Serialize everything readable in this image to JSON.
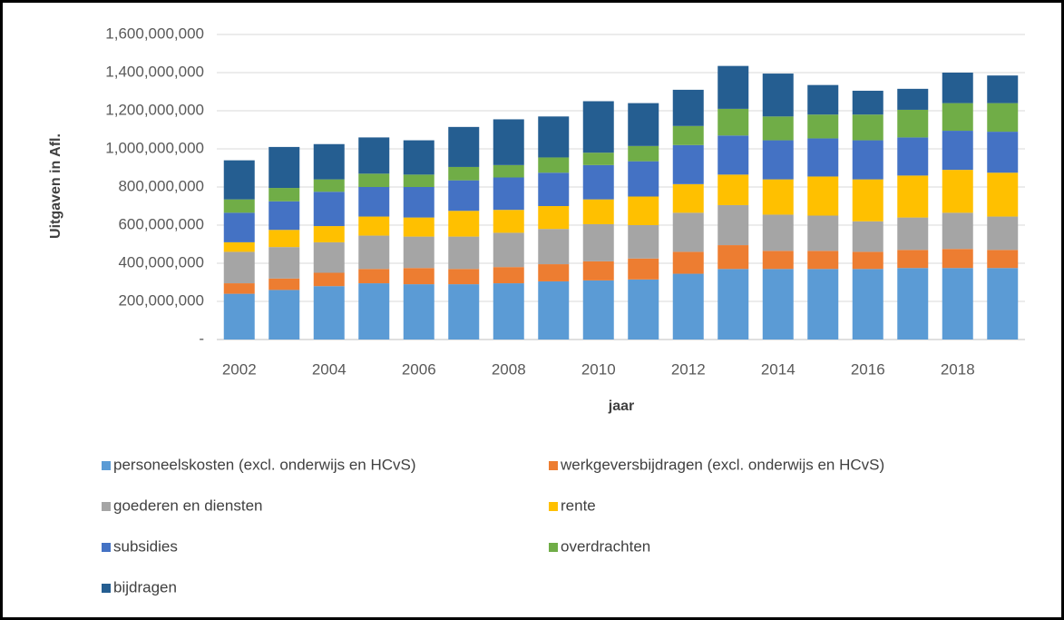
{
  "chart_data": {
    "type": "stacked_bar",
    "y_label": "Uitgaven in Afl.",
    "x_label": "jaar",
    "categories": [
      "2002",
      null,
      "2004",
      null,
      "2006",
      null,
      "2008",
      null,
      "2010",
      null,
      "2012",
      null,
      "2014",
      null,
      "2016",
      null,
      "2018",
      null
    ],
    "ylim": [
      0,
      1600000000
    ],
    "yticks": [
      {
        "value": 0,
        "label": "-"
      },
      {
        "value": 200000000,
        "label": "200,000,000"
      },
      {
        "value": 400000000,
        "label": "400,000,000"
      },
      {
        "value": 600000000,
        "label": "600,000,000"
      },
      {
        "value": 800000000,
        "label": "800,000,000"
      },
      {
        "value": 1000000000,
        "label": "1,000,000,000"
      },
      {
        "value": 1200000000,
        "label": "1,200,000,000"
      },
      {
        "value": 1400000000,
        "label": "1,400,000,000"
      },
      {
        "value": 1600000000,
        "label": "1,600,000,000"
      }
    ],
    "grid": true,
    "legend_position": "bottom",
    "series": [
      {
        "name": "personeelskosten (excl. onderwijs en HCvS)",
        "color": "#5b9bd5",
        "values": [
          240000000,
          260000000,
          280000000,
          295000000,
          290000000,
          290000000,
          295000000,
          305000000,
          310000000,
          315000000,
          345000000,
          370000000,
          370000000,
          370000000,
          370000000,
          375000000,
          375000000,
          375000000
        ]
      },
      {
        "name": "werkgeversbijdragen (excl. onderwijs en HCvS)",
        "color": "#ed7d31",
        "values": [
          55000000,
          60000000,
          70000000,
          75000000,
          85000000,
          80000000,
          85000000,
          90000000,
          100000000,
          110000000,
          115000000,
          125000000,
          95000000,
          95000000,
          90000000,
          95000000,
          100000000,
          95000000
        ]
      },
      {
        "name": "goederen en diensten",
        "color": "#a5a5a5",
        "values": [
          165000000,
          165000000,
          160000000,
          175000000,
          165000000,
          170000000,
          180000000,
          185000000,
          195000000,
          175000000,
          205000000,
          210000000,
          190000000,
          185000000,
          160000000,
          170000000,
          190000000,
          175000000
        ]
      },
      {
        "name": "rente",
        "color": "#ffc000",
        "values": [
          50000000,
          90000000,
          85000000,
          100000000,
          100000000,
          135000000,
          120000000,
          120000000,
          130000000,
          150000000,
          150000000,
          160000000,
          185000000,
          205000000,
          220000000,
          220000000,
          225000000,
          230000000
        ]
      },
      {
        "name": "subsidies",
        "color": "#4472c4",
        "values": [
          155000000,
          150000000,
          180000000,
          155000000,
          160000000,
          160000000,
          170000000,
          175000000,
          180000000,
          185000000,
          205000000,
          205000000,
          205000000,
          200000000,
          205000000,
          200000000,
          205000000,
          215000000
        ]
      },
      {
        "name": "overdrachten",
        "color": "#70ad47",
        "values": [
          70000000,
          70000000,
          65000000,
          70000000,
          65000000,
          70000000,
          65000000,
          80000000,
          65000000,
          80000000,
          100000000,
          140000000,
          125000000,
          125000000,
          135000000,
          145000000,
          145000000,
          150000000
        ]
      },
      {
        "name": "bijdragen",
        "color": "#255e91",
        "values": [
          205000000,
          215000000,
          185000000,
          190000000,
          180000000,
          210000000,
          240000000,
          215000000,
          270000000,
          225000000,
          190000000,
          225000000,
          225000000,
          155000000,
          125000000,
          110000000,
          160000000,
          145000000
        ]
      }
    ]
  }
}
